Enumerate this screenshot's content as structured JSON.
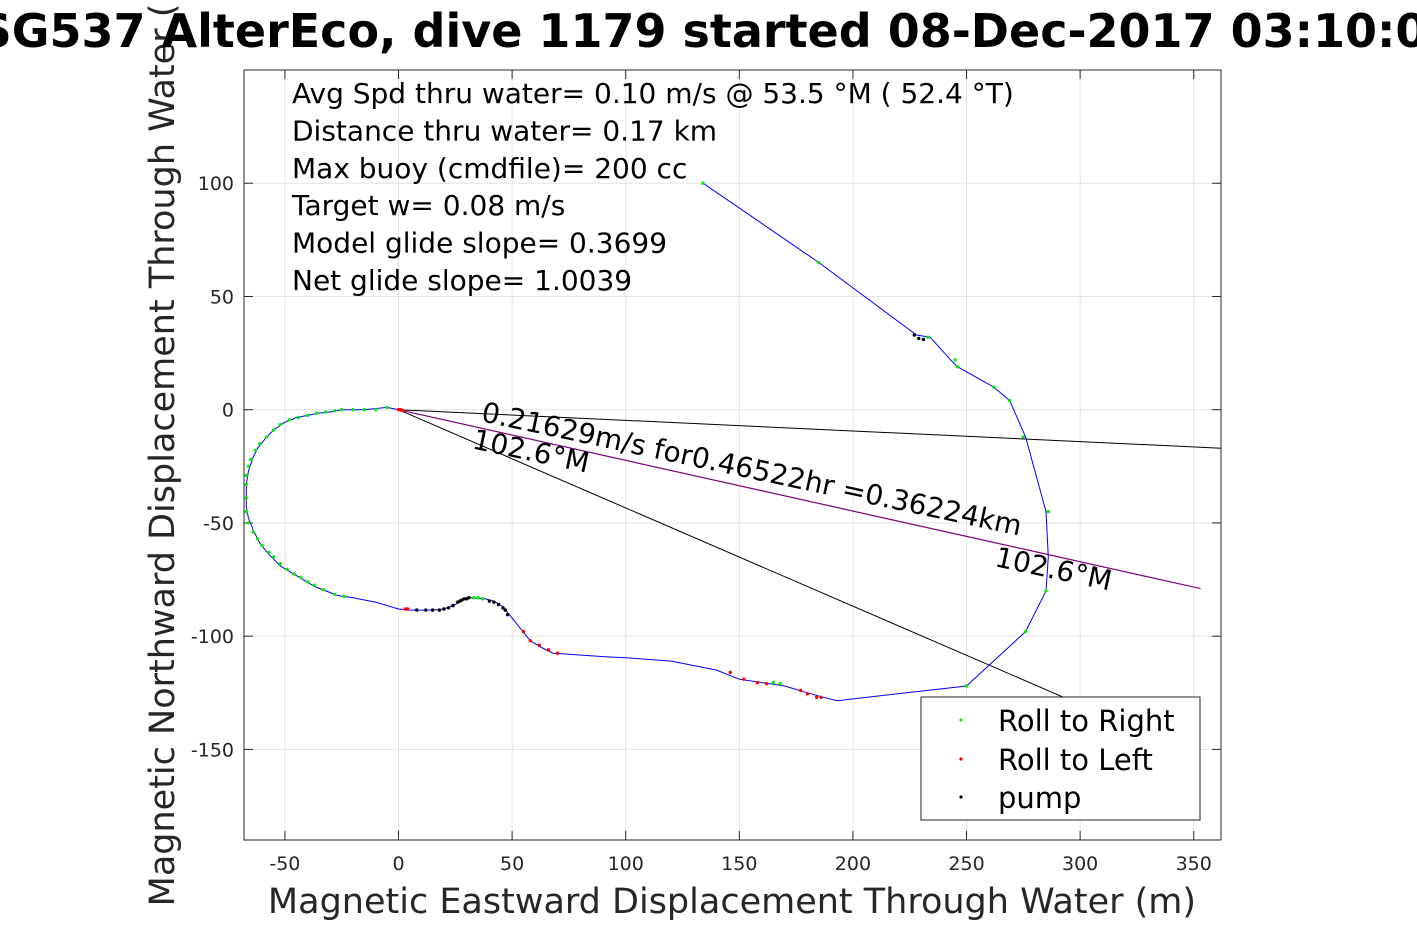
{
  "chart_data": {
    "type": "line",
    "title": "SG537 AlterEco, dive 1179 started 08-Dec-2017 03:10:0",
    "xlabel": "Magnetic Eastward Displacement Through Water (m)",
    "ylabel": "Magnetic Northward Displacement Through Water (",
    "xlim": [
      -68,
      362
    ],
    "ylim": [
      -190,
      150
    ],
    "xticks": [
      -50,
      0,
      50,
      100,
      150,
      200,
      250,
      300,
      350
    ],
    "yticks": [
      -150,
      -100,
      -50,
      0,
      50,
      100
    ],
    "grid": true,
    "legend_position": "bottom-right",
    "stats": [
      "Avg Spd thru water=  0.10 m/s @  53.5 °M ( 52.4 °T)",
      "Distance thru water=  0.17 km",
      "Max buoy (cmdfile)= 200 cc",
      "Target w= 0.08 m/s",
      "Model glide slope= 0.3699",
      "Net glide slope= 1.0039"
    ],
    "annotations": [
      {
        "text": "0.21629m/s for0.46522hr =0.36224km",
        "x": 36,
        "y": -5,
        "rotation_deg": 12
      },
      {
        "text": "102.6°M",
        "x": 32,
        "y": -17,
        "rotation_deg": 12
      },
      {
        "text": "102.6°M",
        "x": 262,
        "y": -69,
        "rotation_deg": 12
      }
    ],
    "reference_lines": [
      {
        "name": "envelope-upper",
        "color": "#000000",
        "points": [
          [
            0,
            0
          ],
          [
            362,
            -17
          ]
        ]
      },
      {
        "name": "envelope-lower",
        "color": "#000000",
        "points": [
          [
            0,
            0
          ],
          [
            302,
            -131
          ]
        ]
      },
      {
        "name": "current",
        "color": "#800080",
        "points": [
          [
            0,
            0
          ],
          [
            353,
            -79
          ]
        ]
      }
    ],
    "series": [
      {
        "name": "track",
        "style": "line",
        "color": "#0000ff",
        "points": [
          [
            0,
            0
          ],
          [
            -5,
            1
          ],
          [
            -15,
            0
          ],
          [
            -25,
            0
          ],
          [
            -30,
            -1
          ],
          [
            -35,
            -1.5
          ],
          [
            -40,
            -2.5
          ],
          [
            -45,
            -3.5
          ],
          [
            -50,
            -5.5
          ],
          [
            -55,
            -9
          ],
          [
            -58,
            -12
          ],
          [
            -62,
            -17
          ],
          [
            -64,
            -21
          ],
          [
            -66,
            -27
          ],
          [
            -67,
            -33
          ],
          [
            -67,
            -38
          ],
          [
            -67,
            -43
          ],
          [
            -66,
            -48
          ],
          [
            -64,
            -53
          ],
          [
            -61,
            -59
          ],
          [
            -57,
            -64
          ],
          [
            -52,
            -69
          ],
          [
            -47,
            -72
          ],
          [
            -42,
            -75
          ],
          [
            -37,
            -78
          ],
          [
            -32,
            -80
          ],
          [
            -27,
            -82
          ],
          [
            -20,
            -83
          ],
          [
            -10,
            -85
          ],
          [
            0,
            -88
          ],
          [
            5,
            -88.5
          ],
          [
            10,
            -88.5
          ],
          [
            15,
            -88.5
          ],
          [
            20,
            -88
          ],
          [
            25,
            -86
          ],
          [
            28,
            -84
          ],
          [
            32,
            -83
          ],
          [
            38,
            -83.5
          ],
          [
            42,
            -84.5
          ],
          [
            46,
            -87
          ],
          [
            50,
            -92
          ],
          [
            54,
            -97
          ],
          [
            58,
            -102
          ],
          [
            63,
            -105
          ],
          [
            68,
            -107.5
          ],
          [
            75,
            -108
          ],
          [
            90,
            -109
          ],
          [
            100,
            -109.5
          ],
          [
            120,
            -111
          ],
          [
            140,
            -115
          ],
          [
            150,
            -119
          ],
          [
            160,
            -120.5
          ],
          [
            170,
            -122
          ],
          [
            180,
            -125
          ],
          [
            187,
            -127
          ],
          [
            193,
            -128.5
          ],
          [
            250,
            -122
          ],
          [
            276,
            -98
          ],
          [
            285,
            -80
          ],
          [
            286,
            -65
          ],
          [
            285,
            -45
          ],
          [
            276,
            -12
          ],
          [
            269,
            4
          ],
          [
            262,
            10
          ],
          [
            246,
            19
          ],
          [
            243,
            22
          ],
          [
            234,
            32
          ],
          [
            228,
            33
          ],
          [
            185,
            65
          ],
          [
            134,
            100
          ]
        ]
      },
      {
        "name": "Roll to Right",
        "style": "markers",
        "color": "#00ee00",
        "points": [
          [
            -5,
            1
          ],
          [
            -10,
            0
          ],
          [
            -15,
            0
          ],
          [
            -20,
            0
          ],
          [
            -25,
            0
          ],
          [
            -28,
            -0.5
          ],
          [
            -32,
            -1
          ],
          [
            -36,
            -1.5
          ],
          [
            -40,
            -2.5
          ],
          [
            -44,
            -3.5
          ],
          [
            -48,
            -4.5
          ],
          [
            -52,
            -6.5
          ],
          [
            -55,
            -9
          ],
          [
            -58,
            -12
          ],
          [
            -61,
            -15
          ],
          [
            -63,
            -18
          ],
          [
            -65,
            -22
          ],
          [
            -66,
            -25
          ],
          [
            -67,
            -29
          ],
          [
            -67,
            -33
          ],
          [
            -67,
            -39
          ],
          [
            -67,
            -45
          ],
          [
            -66,
            -50
          ],
          [
            -64,
            -54
          ],
          [
            -62,
            -57
          ],
          [
            -60,
            -60
          ],
          [
            -57,
            -63
          ],
          [
            -55,
            -65
          ],
          [
            -52,
            -68
          ],
          [
            -49,
            -70.5
          ],
          [
            -46,
            -72.5
          ],
          [
            -43,
            -74
          ],
          [
            -40,
            -76
          ],
          [
            -37,
            -77.5
          ],
          [
            -33,
            -79.5
          ],
          [
            -28,
            -81.5
          ],
          [
            -24,
            -82.5
          ],
          [
            33,
            -83
          ],
          [
            35,
            -83
          ],
          [
            37,
            -83.5
          ],
          [
            165,
            -120.5
          ],
          [
            168,
            -121
          ],
          [
            134,
            100
          ],
          [
            185,
            65
          ],
          [
            233,
            32
          ],
          [
            245,
            22
          ],
          [
            246,
            19
          ],
          [
            262,
            10
          ],
          [
            269,
            4
          ],
          [
            275,
            -12
          ],
          [
            286,
            -45
          ],
          [
            285,
            -80
          ],
          [
            276,
            -98
          ],
          [
            250,
            -122
          ]
        ]
      },
      {
        "name": "Roll to Left",
        "style": "markers",
        "color": "#ff0000",
        "points": [
          [
            0,
            0
          ],
          [
            1,
            0
          ],
          [
            2,
            -0.5
          ],
          [
            3,
            -88
          ],
          [
            4,
            -88
          ],
          [
            55,
            -98
          ],
          [
            58,
            -102
          ],
          [
            62,
            -104
          ],
          [
            66,
            -106
          ],
          [
            70,
            -107.5
          ],
          [
            146,
            -116
          ],
          [
            152,
            -119
          ],
          [
            158,
            -120.5
          ],
          [
            162,
            -121
          ],
          [
            177,
            -124
          ],
          [
            180,
            -125.5
          ],
          [
            184,
            -127
          ],
          [
            186,
            -127
          ]
        ]
      },
      {
        "name": "pump",
        "style": "markers",
        "color": "#000000",
        "points": [
          [
            8,
            -88.5
          ],
          [
            12,
            -88.5
          ],
          [
            15,
            -88.5
          ],
          [
            18,
            -88.5
          ],
          [
            20,
            -88
          ],
          [
            22,
            -87.5
          ],
          [
            24,
            -86.5
          ],
          [
            26,
            -85
          ],
          [
            27,
            -84.5
          ],
          [
            28,
            -84
          ],
          [
            29,
            -83.5
          ],
          [
            30,
            -83.5
          ],
          [
            31,
            -83
          ],
          [
            40,
            -84.5
          ],
          [
            42,
            -85
          ],
          [
            44,
            -86
          ],
          [
            46,
            -87.5
          ],
          [
            47,
            -88.5
          ],
          [
            48,
            -90.5
          ],
          [
            227,
            33
          ],
          [
            229,
            31.5
          ],
          [
            231,
            31
          ]
        ]
      }
    ],
    "legend": [
      "Roll to Right",
      "Roll to Left",
      "pump"
    ]
  }
}
